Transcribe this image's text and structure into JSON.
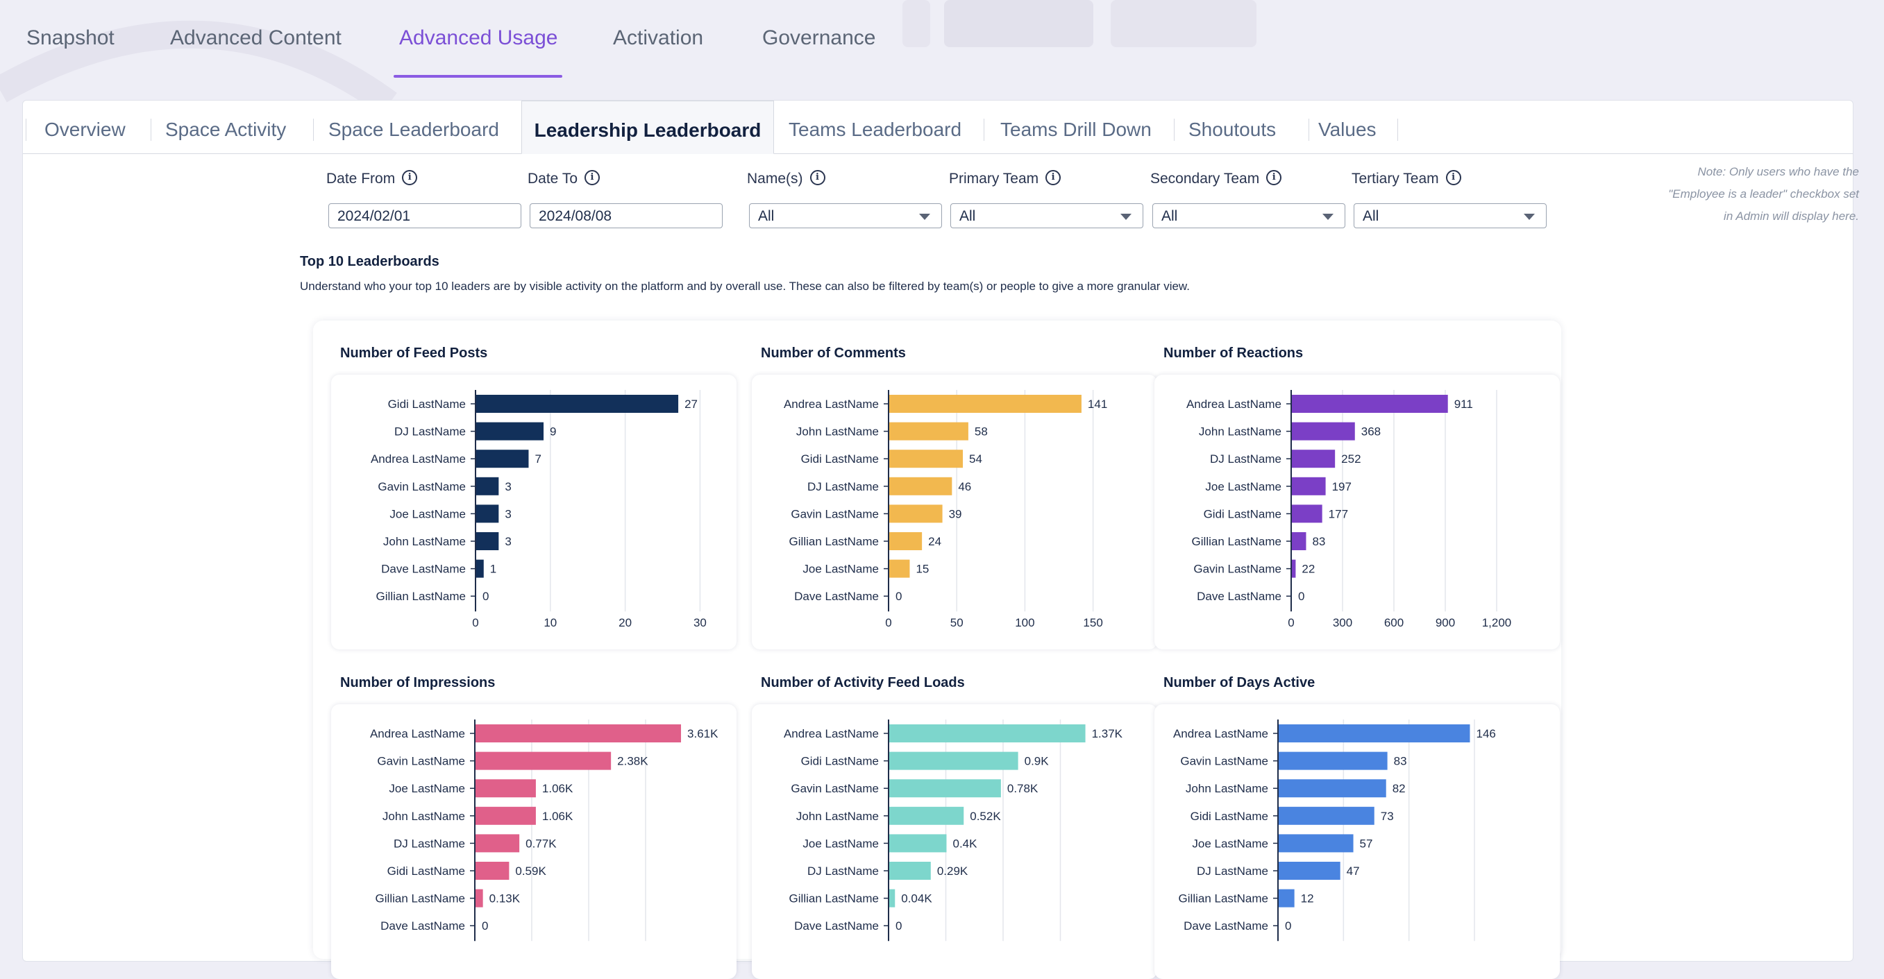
{
  "top_tabs": [
    {
      "label": "Snapshot",
      "active": false
    },
    {
      "label": "Advanced Content",
      "active": false
    },
    {
      "label": "Advanced Usage",
      "active": true
    },
    {
      "label": "Activation",
      "active": false
    },
    {
      "label": "Governance",
      "active": false
    }
  ],
  "sub_tabs": [
    {
      "label": "Overview",
      "active": false
    },
    {
      "label": "Space Activity",
      "active": false
    },
    {
      "label": "Space Leaderboard",
      "active": false
    },
    {
      "label": "Leadership Leaderboard",
      "active": true
    },
    {
      "label": "Teams Leaderboard",
      "active": false
    },
    {
      "label": "Teams Drill Down",
      "active": false
    },
    {
      "label": "Shoutouts",
      "active": false
    },
    {
      "label": "Values",
      "active": false
    }
  ],
  "filters": {
    "date_from": {
      "label": "Date From",
      "value": "2024/02/01"
    },
    "date_to": {
      "label": "Date To",
      "value": "2024/08/08"
    },
    "names": {
      "label": "Name(s)",
      "value": "All"
    },
    "primary_team": {
      "label": "Primary Team",
      "value": "All"
    },
    "secondary_team": {
      "label": "Secondary Team",
      "value": "All"
    },
    "tertiary_team": {
      "label": "Tertiary Team",
      "value": "All"
    }
  },
  "note": "Note: Only users who have the \"Employee is a leader\" checkbox set in Admin will display here.",
  "section": {
    "title": "Top 10 Leaderboards",
    "description": "Understand who your top 10 leaders are by visible activity on the platform and by overall use. These can also be filtered by team(s) or people to give a more granular view."
  },
  "chart_data": [
    {
      "type": "bar",
      "orientation": "horizontal",
      "title": "Number of Feed Posts",
      "color": "#12305a",
      "categories": [
        "Gidi LastName",
        "DJ LastName",
        "Andrea LastName",
        "Gavin LastName",
        "Joe LastName",
        "John LastName",
        "Dave LastName",
        "Gillian LastName"
      ],
      "values": [
        27,
        9,
        7,
        3,
        3,
        3,
        1,
        0
      ],
      "labels": [
        "27",
        "9",
        "7",
        "3",
        "3",
        "3",
        "1",
        "0"
      ],
      "xlim": [
        0,
        32
      ],
      "xticks": [
        0,
        10,
        20,
        30
      ],
      "xtick_labels": [
        "0",
        "10",
        "20",
        "30"
      ]
    },
    {
      "type": "bar",
      "orientation": "horizontal",
      "title": "Number of Comments",
      "color": "#f2b84f",
      "categories": [
        "Andrea LastName",
        "John LastName",
        "Gidi LastName",
        "DJ LastName",
        "Gavin LastName",
        "Gillian LastName",
        "Joe LastName",
        "Dave LastName"
      ],
      "values": [
        141,
        58,
        54,
        46,
        39,
        24,
        15,
        0
      ],
      "labels": [
        "141",
        "58",
        "54",
        "46",
        "39",
        "24",
        "15",
        "0"
      ],
      "xlim": [
        0,
        167
      ],
      "xticks": [
        0,
        50,
        100,
        150
      ],
      "xtick_labels": [
        "0",
        "50",
        "100",
        "150"
      ]
    },
    {
      "type": "bar",
      "orientation": "horizontal",
      "title": "Number of Reactions",
      "color": "#7b3fc6",
      "categories": [
        "Andrea LastName",
        "John LastName",
        "DJ LastName",
        "Joe LastName",
        "Gidi LastName",
        "Gillian LastName",
        "Gavin LastName",
        "Dave LastName"
      ],
      "values": [
        911,
        368,
        252,
        197,
        177,
        83,
        22,
        0
      ],
      "labels": [
        "911",
        "368",
        "252",
        "197",
        "177",
        "83",
        "22",
        "0"
      ],
      "xlim": [
        0,
        1200
      ],
      "xticks": [
        0,
        300,
        600,
        900,
        1200
      ],
      "xtick_labels": [
        "0",
        "300",
        "600",
        "900",
        "1,200"
      ]
    },
    {
      "type": "bar",
      "orientation": "horizontal",
      "title": "Number of Impressions",
      "color": "#e0608a",
      "categories": [
        "Andrea LastName",
        "Gavin LastName",
        "Joe LastName",
        "John LastName",
        "DJ LastName",
        "Gidi LastName",
        "Gillian LastName",
        "Dave LastName"
      ],
      "values": [
        3610,
        2380,
        1060,
        1060,
        770,
        590,
        130,
        0
      ],
      "labels": [
        "3.61K",
        "2.38K",
        "1.06K",
        "1.06K",
        "0.77K",
        "0.59K",
        "0.13K",
        "0"
      ],
      "xlim": [
        0,
        4000
      ],
      "xticks": [
        0,
        1000,
        2000,
        3000
      ],
      "xtick_labels": [
        "",
        "",
        "",
        ""
      ]
    },
    {
      "type": "bar",
      "orientation": "horizontal",
      "title": "Number of Activity Feed Loads",
      "color": "#7dd6cc",
      "categories": [
        "Andrea LastName",
        "Gidi LastName",
        "Gavin LastName",
        "John LastName",
        "Joe LastName",
        "DJ LastName",
        "Gillian LastName",
        "Dave LastName"
      ],
      "values": [
        1370,
        900,
        780,
        520,
        400,
        290,
        40,
        0
      ],
      "labels": [
        "1.37K",
        "0.9K",
        "0.78K",
        "0.52K",
        "0.4K",
        "0.29K",
        "0.04K",
        "0"
      ],
      "xlim": [
        0,
        1600
      ],
      "xticks": [
        0,
        400,
        800,
        1200
      ],
      "xtick_labels": [
        "",
        "",
        "",
        ""
      ]
    },
    {
      "type": "bar",
      "orientation": "horizontal",
      "title": "Number of Days Active",
      "color": "#4a84e0",
      "categories": [
        "Andrea LastName",
        "Gavin LastName",
        "John LastName",
        "Gidi LastName",
        "Joe LastName",
        "DJ LastName",
        "Gillian LastName",
        "Dave LastName"
      ],
      "values": [
        146,
        83,
        82,
        73,
        57,
        47,
        12,
        0
      ],
      "labels": [
        "146",
        "83",
        "82",
        "73",
        "57",
        "47",
        "12",
        "0"
      ],
      "xlim": [
        0,
        168
      ],
      "xticks": [
        0,
        50,
        100,
        150
      ],
      "xtick_labels": [
        "",
        "",
        "",
        ""
      ]
    }
  ]
}
